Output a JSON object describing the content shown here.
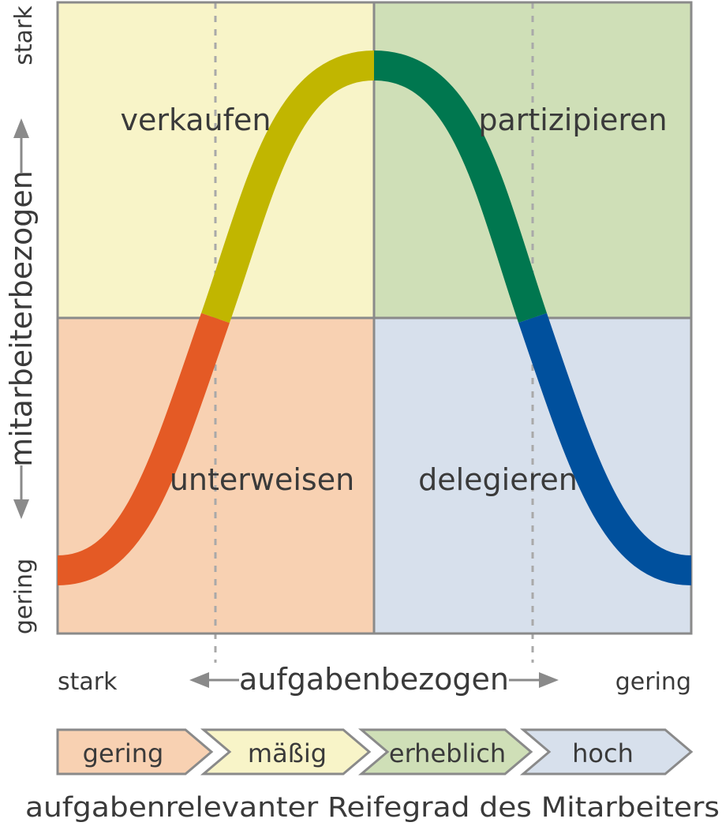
{
  "quadrants": {
    "top_left": {
      "label": "verkaufen",
      "color": "#f8f4c8"
    },
    "top_right": {
      "label": "partizipieren",
      "color": "#cfdfb7"
    },
    "bottom_left": {
      "label": "unterweisen",
      "color": "#f8d1b2"
    },
    "bottom_right": {
      "label": "delegieren",
      "color": "#d7e0ec"
    }
  },
  "curve_colors": {
    "s1": "#e45a25",
    "s2": "#c1b600",
    "s3": "#00774f",
    "s4": "#00509d"
  },
  "y_axis": {
    "label": "mitarbeiterbezogen",
    "top": "stark",
    "bottom": "gering"
  },
  "x_axis": {
    "label": "aufgabenbezogen",
    "left": "stark",
    "right": "gering"
  },
  "maturity_scale": {
    "levels": [
      {
        "label": "gering",
        "color": "#f8d1b2"
      },
      {
        "label": "mäßig",
        "color": "#f8f4c8"
      },
      {
        "label": "erheblich",
        "color": "#cfdfb7"
      },
      {
        "label": "hoch",
        "color": "#d7e0ec"
      }
    ],
    "caption": "aufgabenrelevanter Reifegrad des Mitarbeiters"
  }
}
